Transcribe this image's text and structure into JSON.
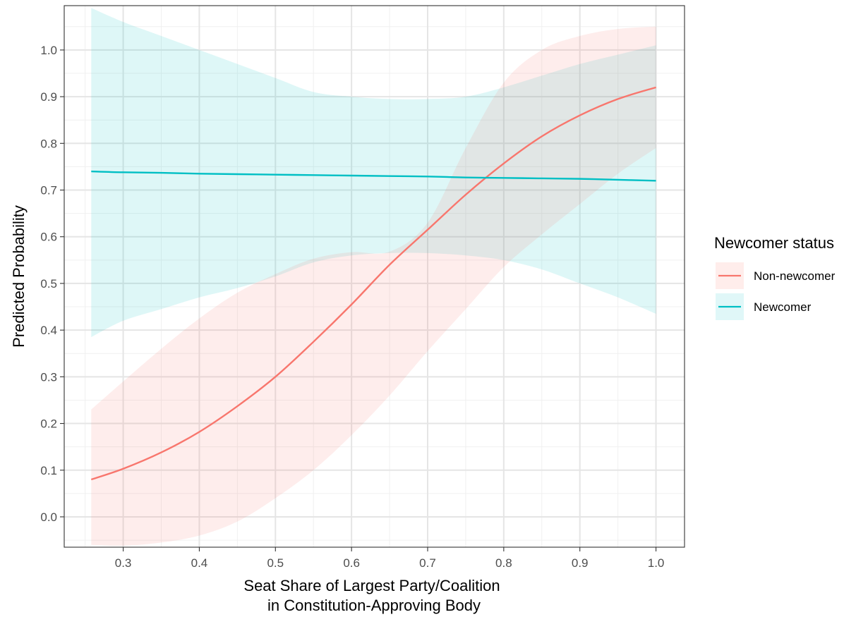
{
  "chart_data": {
    "type": "line",
    "title": "",
    "xlabel_lines": [
      "Seat Share of Largest Party/Coalition",
      "in Constitution-Approving Body"
    ],
    "ylabel": "Predicted Probability",
    "xlim": [
      0.2225,
      1.0375
    ],
    "ylim": [
      -0.065,
      1.095
    ],
    "x_ticks": [
      "0.3",
      "0.4",
      "0.5",
      "0.6",
      "0.7",
      "0.8",
      "0.9",
      "1.0"
    ],
    "x_tick_values": [
      0.3,
      0.4,
      0.5,
      0.6,
      0.7,
      0.8,
      0.9,
      1.0
    ],
    "y_ticks": [
      "0.0",
      "0.1",
      "0.2",
      "0.3",
      "0.4",
      "0.5",
      "0.6",
      "0.7",
      "0.8",
      "0.9",
      "1.0"
    ],
    "y_tick_values": [
      0.0,
      0.1,
      0.2,
      0.3,
      0.4,
      0.5,
      0.6,
      0.7,
      0.8,
      0.9,
      1.0
    ],
    "grid": true,
    "legend": {
      "title": "Newcomer status",
      "position": "right"
    },
    "x": [
      0.258,
      0.3,
      0.35,
      0.4,
      0.45,
      0.5,
      0.55,
      0.6,
      0.65,
      0.7,
      0.75,
      0.8,
      0.85,
      0.9,
      0.95,
      1.0
    ],
    "series": [
      {
        "name": "Non-newcomer",
        "color": "#F8766D",
        "ribbon_color": "#FFEDEB",
        "values": [
          0.08,
          0.103,
          0.138,
          0.182,
          0.237,
          0.3,
          0.375,
          0.455,
          0.54,
          0.615,
          0.69,
          0.757,
          0.815,
          0.86,
          0.895,
          0.92
        ],
        "lower": [
          -0.06,
          -0.062,
          -0.055,
          -0.04,
          -0.01,
          0.04,
          0.1,
          0.175,
          0.26,
          0.355,
          0.445,
          0.535,
          0.605,
          0.67,
          0.735,
          0.79
        ],
        "upper": [
          0.23,
          0.29,
          0.36,
          0.425,
          0.48,
          0.52,
          0.553,
          0.567,
          0.568,
          0.63,
          0.79,
          0.93,
          1.0,
          1.03,
          1.045,
          1.05
        ]
      },
      {
        "name": "Newcomer",
        "color": "#00BFC4",
        "ribbon_color": "#E0F7F8",
        "values": [
          0.74,
          0.738,
          0.737,
          0.735,
          0.734,
          0.733,
          0.732,
          0.731,
          0.73,
          0.729,
          0.727,
          0.726,
          0.725,
          0.724,
          0.722,
          0.72
        ],
        "lower": [
          0.385,
          0.42,
          0.445,
          0.47,
          0.49,
          0.515,
          0.545,
          0.56,
          0.565,
          0.565,
          0.56,
          0.55,
          0.53,
          0.5,
          0.47,
          0.435
        ],
        "upper": [
          1.09,
          1.06,
          1.03,
          1.0,
          0.97,
          0.94,
          0.91,
          0.9,
          0.895,
          0.895,
          0.9,
          0.92,
          0.945,
          0.97,
          0.99,
          1.01
        ]
      }
    ]
  }
}
